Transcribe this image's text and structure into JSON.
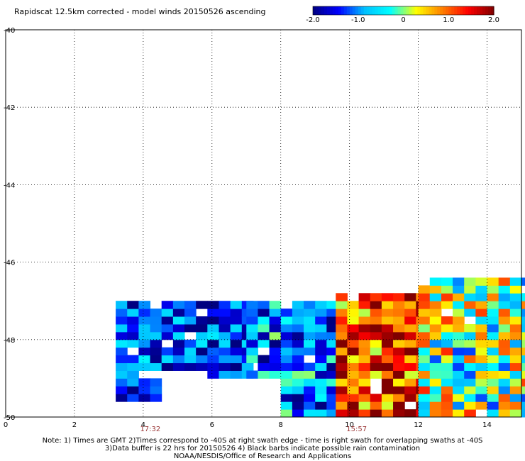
{
  "chart_data": {
    "type": "heatmap",
    "title": "Rapidscat 12.5km corrected - model winds 20150526 ascending",
    "xlabel": "",
    "ylabel": "",
    "xlim": [
      0,
      15
    ],
    "ylim": [
      -50,
      -40
    ],
    "x_ticks": [
      0,
      2,
      4,
      6,
      8,
      10,
      12,
      14
    ],
    "y_ticks": [
      -40,
      -42,
      -44,
      -46,
      -48,
      -50
    ],
    "grid": true,
    "colorbar": {
      "min": -2.0,
      "max": 2.0,
      "tick_values": [
        -2.0,
        -1.0,
        0,
        1.0,
        2.0
      ],
      "tick_labels": [
        "-2.0",
        "-1.0",
        "0",
        "1.0",
        "2.0"
      ],
      "colors": [
        "#000080",
        "#0000ff",
        "#00bfff",
        "#00ffff",
        "#ffff00",
        "#ff8000",
        "#ff0000",
        "#800000"
      ]
    },
    "time_labels": [
      {
        "x": 4.0,
        "label": "17:32",
        "color": "#993333"
      },
      {
        "x": 10.0,
        "label": "15:57",
        "color": "#993333"
      }
    ],
    "cell_size_deg": [
      0.3333,
      0.2
    ],
    "regions": [
      {
        "x0": 3.2,
        "x1": 7.0,
        "y0": -50.0,
        "y1": -47.1,
        "base": -1.3,
        "amp": 0.7
      },
      {
        "x0": 7.0,
        "x1": 9.6,
        "y0": -50.0,
        "y1": -47.0,
        "base": -1.0,
        "amp": 0.8
      },
      {
        "x0": 9.6,
        "x1": 12.0,
        "y0": -50.0,
        "y1": -46.8,
        "base": 1.2,
        "amp": 0.8
      },
      {
        "x0": 12.0,
        "x1": 15.0,
        "y0": -50.0,
        "y1": -46.4,
        "base": 0.0,
        "amp": 0.9
      }
    ],
    "gaps": [
      {
        "x0": 4.0,
        "x1": 5.6,
        "y0": -49.0,
        "y1": -48.7
      },
      {
        "x0": 4.4,
        "x1": 8.0,
        "y0": -50.0,
        "y1": -49.0
      },
      {
        "x0": 3.2,
        "x1": 4.4,
        "y0": -50.0,
        "y1": -49.6
      }
    ]
  },
  "footer": {
    "line1": "Note: 1) Times are GMT 2)Times correspond to -40S at right swath edge - time is right swath for overlapping swaths at -40S",
    "line2": "3)Data buffer is 22 hrs for 20150526 4) Black barbs indicate possible rain contamination",
    "line3": "NOAA/NESDIS/Office of Research and Applications"
  }
}
